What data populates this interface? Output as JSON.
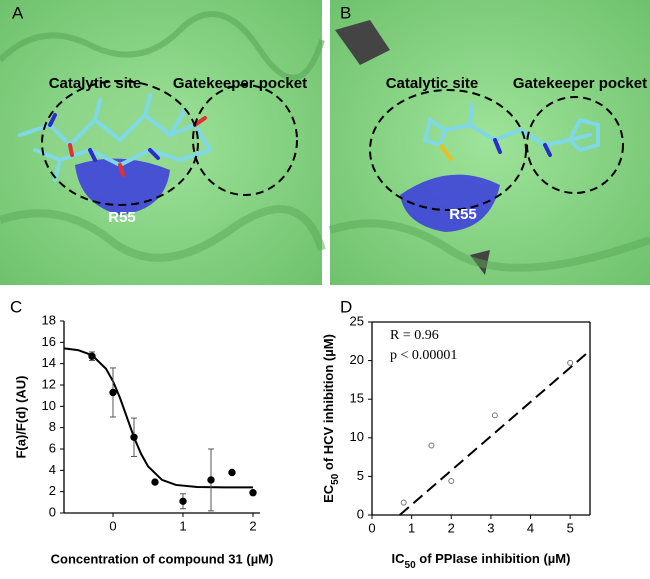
{
  "panels": [
    {
      "label": "A",
      "sites": [
        "Catalytic site",
        "Gatekeeper pocket"
      ],
      "residue": "R55"
    },
    {
      "label": "B",
      "sites": [
        "Catalytic site",
        "Gatekeeper pocket"
      ],
      "residue": "R55"
    }
  ],
  "chart_data": [
    {
      "type": "scatter",
      "panel_label": "C",
      "frame": "axes",
      "marker": "filled",
      "color": "#000000",
      "y_label": "F(a)/F(d) (AU)",
      "x_label": "Concentration of compound 31 (µM)",
      "x": [
        -0.3,
        0,
        0.3,
        0.6,
        1.0,
        1.4,
        1.7,
        2.0
      ],
      "values": [
        14.7,
        11.3,
        7.1,
        2.9,
        1.1,
        3.1,
        3.8,
        1.9
      ],
      "errors": [
        0.4,
        2.3,
        1.8,
        0,
        0.7,
        2.9,
        0,
        0
      ],
      "fit": {
        "x": [
          -0.7,
          -0.5,
          -0.3,
          -0.1,
          0,
          0.1,
          0.2,
          0.3,
          0.4,
          0.5,
          0.7,
          0.9,
          1.2,
          1.6,
          2.0
        ],
        "values": [
          15.43,
          15.27,
          14.8,
          13.52,
          12.35,
          10.79,
          8.95,
          7.1,
          5.55,
          4.38,
          3.1,
          2.63,
          2.44,
          2.4,
          2.4
        ],
        "dashed": false
      },
      "xlim": [
        -0.7,
        2.1
      ],
      "xticks": [
        0,
        1,
        2
      ],
      "ylim": [
        0,
        18
      ],
      "yticks": [
        0,
        2,
        4,
        6,
        8,
        10,
        12,
        14,
        16,
        18
      ]
    },
    {
      "type": "scatter",
      "panel_label": "D",
      "frame": "box",
      "marker": "open",
      "color": "#777777",
      "y_label": [
        "EC",
        "50",
        " of HCV inhibition (µM)"
      ],
      "x_label": [
        "IC",
        "50",
        " of PPIase inhibition (µM)"
      ],
      "annotations": [
        "R = 0.96",
        "p < 0.00001"
      ],
      "x": [
        0.8,
        1.5,
        2.0,
        3.1,
        5.0
      ],
      "values": [
        1.6,
        9.0,
        4.4,
        12.9,
        19.7
      ],
      "fit": {
        "x": [
          0.7,
          5.5
        ],
        "values": [
          0,
          21.3
        ],
        "dashed": true
      },
      "xlim": [
        0,
        5.5
      ],
      "xticks": [
        0,
        1,
        2,
        3,
        4,
        5
      ],
      "ylim": [
        0,
        25
      ],
      "yticks": [
        0,
        5,
        10,
        15,
        20,
        25
      ]
    }
  ]
}
